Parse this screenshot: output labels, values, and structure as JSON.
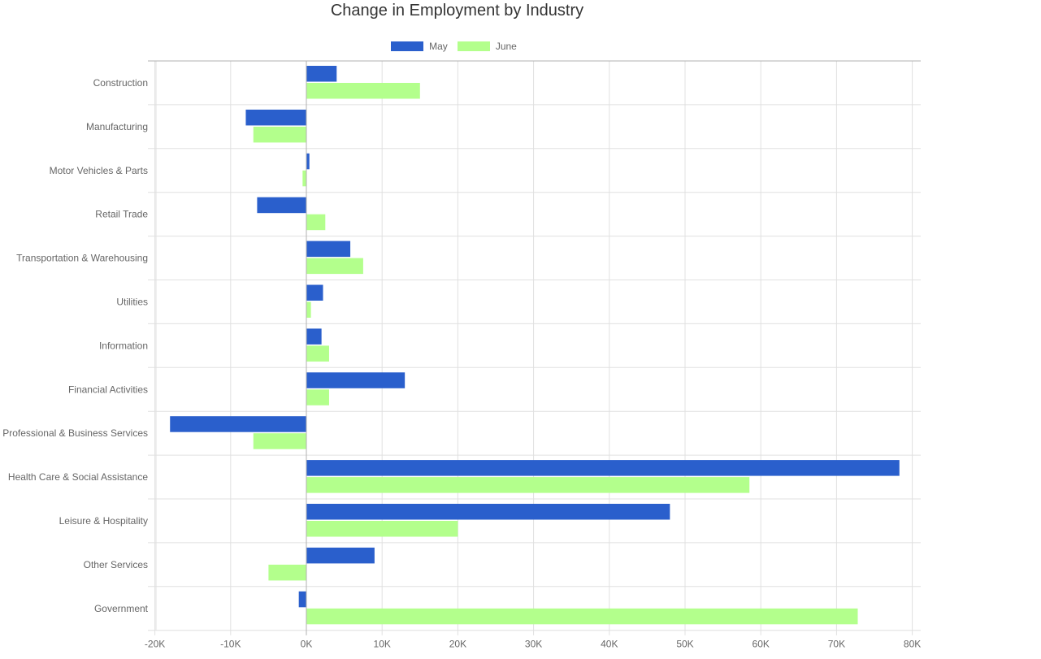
{
  "chart_data": {
    "type": "bar",
    "orientation": "horizontal",
    "title": "Change in Employment by Industry",
    "categories": [
      "Construction",
      "Manufacturing",
      "Motor Vehicles & Parts",
      "Retail Trade",
      "Transportation & Warehousing",
      "Utilities",
      "Information",
      "Financial Activities",
      "Professional & Business Services",
      "Health Care & Social Assistance",
      "Leisure & Hospitality",
      "Other Services",
      "Government"
    ],
    "series": [
      {
        "name": "May",
        "color": "#2a5fcc",
        "values": [
          4000,
          -8000,
          400,
          -6500,
          5800,
          2200,
          2000,
          13000,
          -18000,
          78300,
          48000,
          9000,
          -1000
        ]
      },
      {
        "name": "June",
        "color": "#b3ff8c",
        "values": [
          15000,
          -7000,
          -500,
          2500,
          7500,
          600,
          3000,
          3000,
          -7000,
          58500,
          20000,
          -5000,
          72800
        ]
      }
    ],
    "xlim": [
      -20000,
      82000
    ],
    "x_ticks": [
      -20000,
      -10000,
      0,
      10000,
      20000,
      30000,
      40000,
      50000,
      60000,
      70000,
      80000
    ],
    "x_tick_labels": [
      "-20K",
      "-10K",
      "0K",
      "10K",
      "20K",
      "30K",
      "40K",
      "50K",
      "60K",
      "70K",
      "80K"
    ],
    "xlabel": "",
    "ylabel": "",
    "grid": true,
    "legend_position": "top"
  },
  "colors": {
    "grid": "#e0e0e0",
    "zero_line": "#b0b0b0",
    "axis_text": "#666666",
    "title_text": "#333333"
  }
}
